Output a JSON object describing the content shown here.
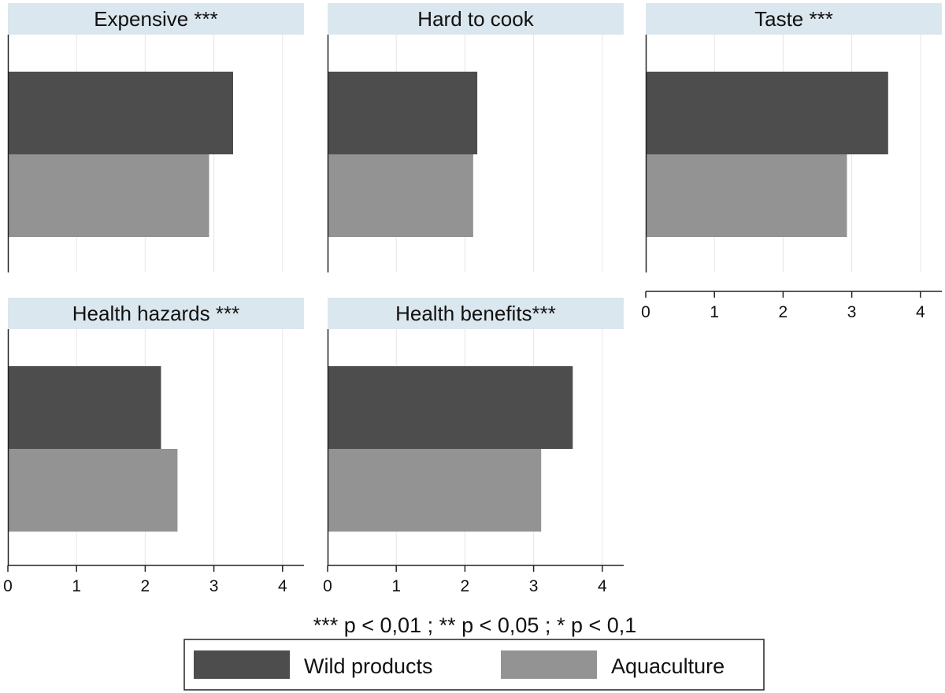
{
  "colors": {
    "wild": "#4d4d4d",
    "aquaculture": "#939393",
    "strip": "#dbe7ee",
    "grid": "#e6e6e6",
    "axis": "#222222"
  },
  "chart_data": {
    "type": "bar",
    "orientation": "horizontal",
    "layout": "small multiples, 3 columns x 2 rows",
    "xlim": [
      0,
      4.3
    ],
    "xticks": [
      0,
      1,
      2,
      3,
      4
    ],
    "grid": true,
    "legend_position": "bottom",
    "series": [
      {
        "name": "Wild products",
        "color": "#4d4d4d"
      },
      {
        "name": "Aquaculture",
        "color": "#939393"
      }
    ],
    "panels": [
      {
        "title": "Expensive ***",
        "values": [
          3.28,
          2.93
        ]
      },
      {
        "title": "Hard to cook",
        "values": [
          2.18,
          2.12
        ]
      },
      {
        "title": "Taste ***",
        "values": [
          3.53,
          2.93
        ]
      },
      {
        "title": "Health hazards ***",
        "values": [
          2.23,
          2.47
        ]
      },
      {
        "title": "Health benefits***",
        "values": [
          3.57,
          3.11
        ]
      }
    ],
    "note": "*** p < 0,01 ; ** p < 0,05 ; * p < 0,1"
  }
}
